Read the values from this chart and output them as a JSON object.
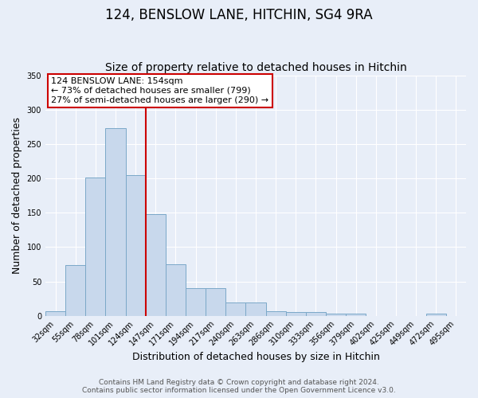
{
  "title": "124, BENSLOW LANE, HITCHIN, SG4 9RA",
  "subtitle": "Size of property relative to detached houses in Hitchin",
  "xlabel": "Distribution of detached houses by size in Hitchin",
  "ylabel": "Number of detached properties",
  "bar_labels": [
    "32sqm",
    "55sqm",
    "78sqm",
    "101sqm",
    "124sqm",
    "147sqm",
    "171sqm",
    "194sqm",
    "217sqm",
    "240sqm",
    "263sqm",
    "286sqm",
    "310sqm",
    "333sqm",
    "356sqm",
    "379sqm",
    "402sqm",
    "425sqm",
    "449sqm",
    "472sqm",
    "495sqm"
  ],
  "bar_values": [
    7,
    74,
    201,
    273,
    205,
    148,
    75,
    40,
    40,
    19,
    19,
    7,
    5,
    5,
    3,
    3,
    0,
    0,
    0,
    3,
    0
  ],
  "bar_color": "#c8d8ec",
  "bar_edge_color": "#7ba8c8",
  "vline_color": "#cc0000",
  "annotation_title": "124 BENSLOW LANE: 154sqm",
  "annotation_line1": "← 73% of detached houses are smaller (799)",
  "annotation_line2": "27% of semi-detached houses are larger (290) →",
  "annotation_box_color": "#ffffff",
  "annotation_box_edge": "#cc0000",
  "ylim": [
    0,
    350
  ],
  "yticks": [
    0,
    50,
    100,
    150,
    200,
    250,
    300,
    350
  ],
  "background_color": "#e8eef8",
  "grid_color": "#ffffff",
  "footer_line1": "Contains HM Land Registry data © Crown copyright and database right 2024.",
  "footer_line2": "Contains public sector information licensed under the Open Government Licence v3.0.",
  "title_fontsize": 12,
  "subtitle_fontsize": 10,
  "xlabel_fontsize": 9,
  "ylabel_fontsize": 9,
  "tick_fontsize": 7,
  "footer_fontsize": 6.5,
  "annotation_fontsize": 8
}
